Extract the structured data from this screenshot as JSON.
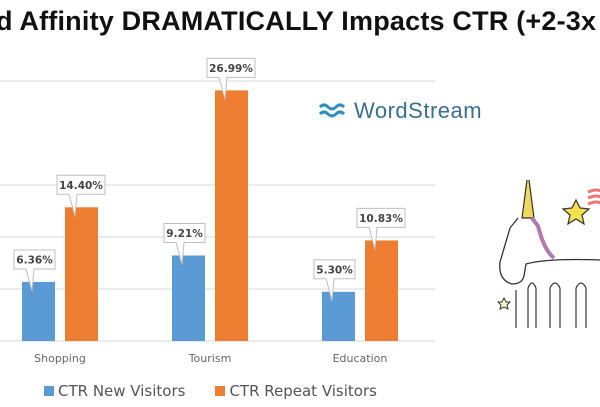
{
  "title": "d Affinity DRAMATICALLY Impacts CTR (+2-3x",
  "logo": {
    "text": "WordStream",
    "color": "#2f8fc4"
  },
  "chart_data": {
    "type": "bar",
    "categories": [
      "Shopping",
      "Tourism",
      "Education"
    ],
    "series": [
      {
        "name": "CTR New Visitors",
        "values": [
          6.36,
          9.21,
          5.3
        ],
        "labels": [
          "6.36%",
          "9.21%",
          "5.30%"
        ],
        "color": "#5b9bd5"
      },
      {
        "name": "CTR Repeat Visitors",
        "values": [
          14.4,
          26.99,
          10.83
        ],
        "labels": [
          "14.40%",
          "26.99%",
          "10.83%"
        ],
        "color": "#ed7d31"
      }
    ],
    "ylim": [
      0,
      28
    ],
    "grid": true,
    "legend": "bottom",
    "title": "",
    "xlabel": "",
    "ylabel": ""
  }
}
